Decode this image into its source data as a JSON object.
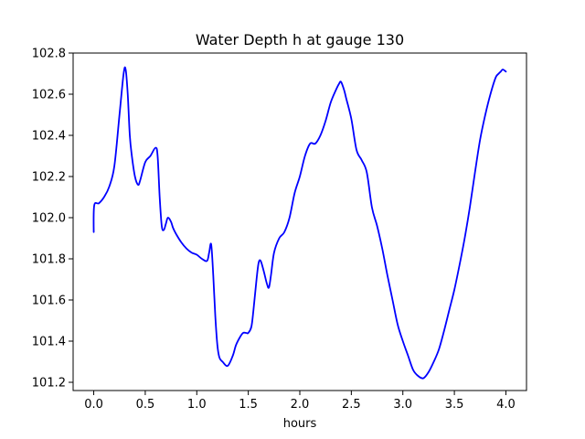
{
  "chart_data": {
    "type": "line",
    "title": "Water Depth h at gauge 130",
    "xlabel": "hours",
    "ylabel": "",
    "xlim": [
      -0.2,
      4.2
    ],
    "ylim": [
      101.16,
      102.8
    ],
    "xticks": [
      0.0,
      0.5,
      1.0,
      1.5,
      2.0,
      2.5,
      3.0,
      3.5,
      4.0
    ],
    "xtick_labels": [
      "0.0",
      "0.5",
      "1.0",
      "1.5",
      "2.0",
      "2.5",
      "3.0",
      "3.5",
      "4.0"
    ],
    "yticks": [
      101.2,
      101.4,
      101.6,
      101.8,
      102.0,
      102.2,
      102.4,
      102.6,
      102.8
    ],
    "ytick_labels": [
      "101.2",
      "101.4",
      "101.6",
      "101.8",
      "102.0",
      "102.2",
      "102.4",
      "102.6",
      "102.8"
    ],
    "grid": false,
    "legend": "none",
    "line_color": "#0000ff",
    "series": [
      {
        "x": [
          0.0,
          0.005,
          0.05,
          0.1,
          0.15,
          0.2,
          0.25,
          0.29,
          0.31,
          0.33,
          0.35,
          0.37,
          0.4,
          0.43,
          0.45,
          0.5,
          0.55,
          0.6,
          0.62,
          0.64,
          0.66,
          0.68,
          0.7,
          0.72,
          0.75,
          0.77,
          0.8,
          0.85,
          0.9,
          0.95,
          1.0,
          1.05,
          1.1,
          1.12,
          1.14,
          1.16,
          1.18,
          1.2,
          1.22,
          1.25,
          1.3,
          1.35,
          1.38,
          1.42,
          1.45,
          1.48,
          1.5,
          1.53,
          1.55,
          1.58,
          1.6,
          1.62,
          1.65,
          1.68,
          1.7,
          1.72,
          1.75,
          1.8,
          1.85,
          1.9,
          1.95,
          2.0,
          2.05,
          2.1,
          2.15,
          2.2,
          2.25,
          2.3,
          2.35,
          2.38,
          2.4,
          2.43,
          2.45,
          2.5,
          2.55,
          2.6,
          2.65,
          2.7,
          2.75,
          2.8,
          2.85,
          2.9,
          2.95,
          3.0,
          3.05,
          3.1,
          3.15,
          3.2,
          3.25,
          3.3,
          3.35,
          3.4,
          3.45,
          3.5,
          3.55,
          3.6,
          3.65,
          3.7,
          3.75,
          3.8,
          3.85,
          3.9,
          3.93,
          3.95,
          3.97,
          4.0
        ],
        "y": [
          101.93,
          102.06,
          102.07,
          102.1,
          102.15,
          102.25,
          102.5,
          102.7,
          102.72,
          102.6,
          102.4,
          102.3,
          102.2,
          102.16,
          102.18,
          102.27,
          102.3,
          102.34,
          102.3,
          102.1,
          101.96,
          101.94,
          101.97,
          102.0,
          101.98,
          101.95,
          101.92,
          101.88,
          101.85,
          101.83,
          101.82,
          101.8,
          101.79,
          101.83,
          101.87,
          101.72,
          101.52,
          101.38,
          101.32,
          101.3,
          101.28,
          101.33,
          101.38,
          101.42,
          101.44,
          101.44,
          101.44,
          101.47,
          101.55,
          101.7,
          101.78,
          101.79,
          101.74,
          101.68,
          101.66,
          101.72,
          101.83,
          101.9,
          101.93,
          102.0,
          102.12,
          102.2,
          102.3,
          102.36,
          102.36,
          102.4,
          102.47,
          102.56,
          102.62,
          102.65,
          102.66,
          102.62,
          102.58,
          102.48,
          102.33,
          102.28,
          102.22,
          102.05,
          101.96,
          101.85,
          101.72,
          101.6,
          101.48,
          101.4,
          101.33,
          101.26,
          101.23,
          101.22,
          101.25,
          101.3,
          101.36,
          101.45,
          101.55,
          101.65,
          101.77,
          101.9,
          102.05,
          102.22,
          102.38,
          102.5,
          102.6,
          102.68,
          102.7,
          102.71,
          102.72,
          102.71
        ]
      }
    ]
  }
}
